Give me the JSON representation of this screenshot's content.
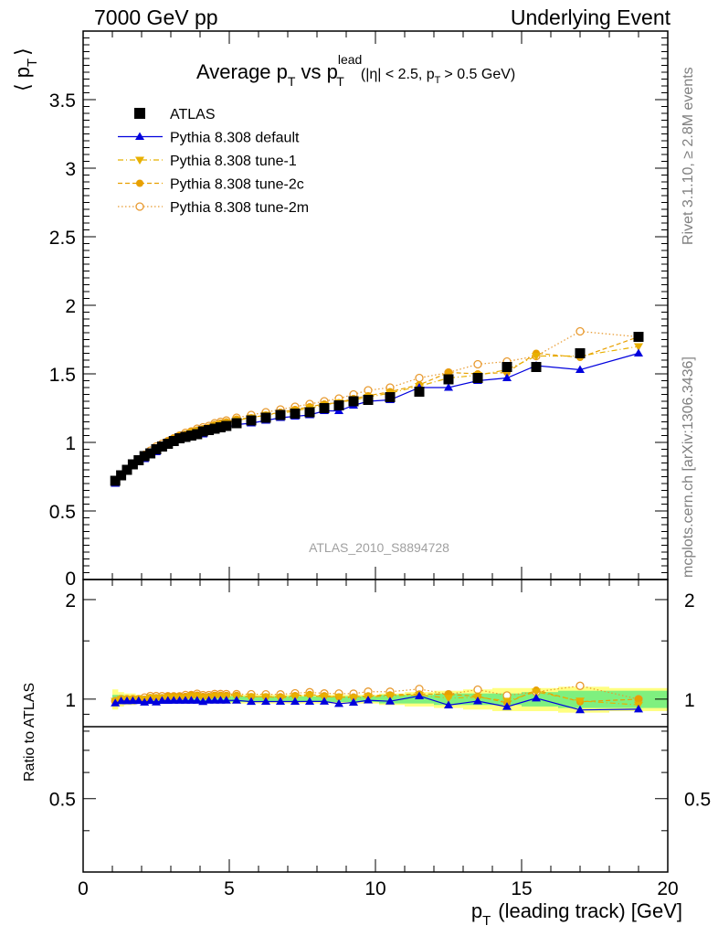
{
  "header": {
    "left": "7000 GeV pp",
    "right": "Underlying Event"
  },
  "side_labels": {
    "rivet": "Rivet 3.1.10, ≥ 2.8M events",
    "mcplots": "mcplots.cern.ch [arXiv:1306.3436]"
  },
  "watermark": "ATLAS_2010_S8894728",
  "colors": {
    "atlas": "#000000",
    "default": "#0000dd",
    "tune1": "#e8b000",
    "tune2c": "#e8a000",
    "tune2m": "#e89a30",
    "band_inner": "#7ff07f",
    "band_outer": "#ffff80"
  },
  "chart_data": [
    {
      "type": "scatter",
      "title_main": "Average p",
      "title_sub": "T",
      "title_vs": "vs p",
      "title_sup": "lead",
      "title_cuts": "(|η| < 2.5, p",
      "title_cuts_end": "> 0.5 GeV)",
      "ylabel": "⟨ p",
      "ylabel_sub": "T",
      "ylabel_end": "⟩",
      "xlim": [
        0,
        20
      ],
      "ylim": [
        0,
        4
      ],
      "yticks": [
        "0.5",
        "1",
        "1.5",
        "2",
        "2.5",
        "3",
        "3.5"
      ],
      "ytick_values": [
        0.5,
        1,
        1.5,
        2,
        2.5,
        3,
        3.5
      ],
      "ytick_zero": "0",
      "legend_placement": "top-left",
      "x": [
        1.1,
        1.3,
        1.5,
        1.7,
        1.9,
        2.1,
        2.3,
        2.5,
        2.7,
        2.9,
        3.1,
        3.3,
        3.5,
        3.7,
        3.9,
        4.1,
        4.3,
        4.5,
        4.7,
        4.9,
        5.25,
        5.75,
        6.25,
        6.75,
        7.25,
        7.75,
        8.25,
        8.75,
        9.25,
        9.75,
        10.5,
        11.5,
        12.5,
        13.5,
        14.5,
        15.5,
        17.0,
        19.0
      ],
      "series": [
        {
          "name": "ATLAS",
          "key": "atlas",
          "marker": "square",
          "values": [
            0.72,
            0.76,
            0.8,
            0.84,
            0.87,
            0.9,
            0.92,
            0.95,
            0.97,
            0.99,
            1.01,
            1.03,
            1.04,
            1.05,
            1.06,
            1.08,
            1.09,
            1.1,
            1.11,
            1.12,
            1.14,
            1.16,
            1.18,
            1.2,
            1.21,
            1.22,
            1.25,
            1.27,
            1.3,
            1.31,
            1.33,
            1.37,
            1.46,
            1.47,
            1.55,
            1.55,
            1.65,
            1.77
          ]
        },
        {
          "name": "Pythia 8.308 default",
          "key": "default",
          "marker": "triangle-up",
          "line": "solid",
          "values": [
            0.7,
            0.75,
            0.79,
            0.83,
            0.86,
            0.88,
            0.91,
            0.93,
            0.96,
            0.98,
            1.0,
            1.02,
            1.03,
            1.04,
            1.05,
            1.06,
            1.08,
            1.09,
            1.1,
            1.11,
            1.13,
            1.14,
            1.16,
            1.18,
            1.19,
            1.2,
            1.23,
            1.23,
            1.27,
            1.3,
            1.31,
            1.4,
            1.4,
            1.45,
            1.47,
            1.56,
            1.53,
            1.65
          ]
        },
        {
          "name": "Pythia 8.308 tune-1",
          "key": "tune1",
          "marker": "triangle-down",
          "line": "dashdot",
          "values": [
            0.71,
            0.76,
            0.8,
            0.84,
            0.87,
            0.9,
            0.93,
            0.96,
            0.98,
            1.0,
            1.02,
            1.04,
            1.05,
            1.07,
            1.08,
            1.09,
            1.1,
            1.12,
            1.13,
            1.14,
            1.16,
            1.18,
            1.2,
            1.21,
            1.23,
            1.25,
            1.27,
            1.29,
            1.31,
            1.33,
            1.36,
            1.41,
            1.47,
            1.49,
            1.53,
            1.63,
            1.63,
            1.7
          ]
        },
        {
          "name": "Pythia 8.308 tune-2c",
          "key": "tune2c",
          "marker": "circle",
          "line": "dashed",
          "values": [
            0.71,
            0.76,
            0.8,
            0.84,
            0.87,
            0.9,
            0.93,
            0.96,
            0.98,
            1.01,
            1.03,
            1.05,
            1.06,
            1.08,
            1.09,
            1.1,
            1.11,
            1.13,
            1.14,
            1.15,
            1.17,
            1.18,
            1.2,
            1.22,
            1.24,
            1.26,
            1.28,
            1.29,
            1.32,
            1.34,
            1.37,
            1.42,
            1.51,
            1.5,
            1.51,
            1.65,
            1.62,
            1.77
          ]
        },
        {
          "name": "Pythia 8.308 tune-2m",
          "key": "tune2m",
          "marker": "circle-open",
          "line": "dotted",
          "values": [
            0.71,
            0.76,
            0.8,
            0.84,
            0.87,
            0.91,
            0.94,
            0.97,
            0.99,
            1.01,
            1.03,
            1.05,
            1.07,
            1.08,
            1.1,
            1.11,
            1.12,
            1.14,
            1.15,
            1.16,
            1.18,
            1.2,
            1.22,
            1.24,
            1.26,
            1.28,
            1.3,
            1.32,
            1.35,
            1.38,
            1.4,
            1.47,
            1.51,
            1.57,
            1.59,
            1.63,
            1.81,
            1.77
          ]
        }
      ]
    },
    {
      "type": "line",
      "ylabel": "Ratio to ATLAS",
      "xlabel": "p",
      "xlabel_sub": "T",
      "xlabel_end": "(leading track) [GeV]",
      "xlim": [
        0,
        20
      ],
      "ylim": [
        0.3,
        2.3
      ],
      "xticks": [
        "0",
        "5",
        "10",
        "15",
        "20"
      ],
      "xtick_values": [
        0,
        5,
        10,
        15,
        20
      ],
      "yticks": [
        "0.5",
        "1",
        "2"
      ],
      "ytick_values": [
        0.5,
        1,
        2
      ],
      "band_inner": [
        0.03,
        0.03,
        0.02,
        0.02,
        0.02,
        0.02,
        0.02,
        0.02,
        0.02,
        0.02,
        0.02,
        0.02,
        0.02,
        0.02,
        0.02,
        0.02,
        0.02,
        0.02,
        0.02,
        0.02,
        0.02,
        0.02,
        0.02,
        0.02,
        0.02,
        0.02,
        0.02,
        0.02,
        0.02,
        0.02,
        0.03,
        0.03,
        0.04,
        0.04,
        0.04,
        0.05,
        0.06,
        0.06
      ],
      "band_outer": [
        0.07,
        0.05,
        0.04,
        0.04,
        0.03,
        0.03,
        0.03,
        0.03,
        0.03,
        0.03,
        0.03,
        0.03,
        0.03,
        0.03,
        0.03,
        0.03,
        0.03,
        0.03,
        0.03,
        0.03,
        0.03,
        0.03,
        0.03,
        0.03,
        0.03,
        0.03,
        0.03,
        0.03,
        0.03,
        0.03,
        0.04,
        0.05,
        0.06,
        0.07,
        0.08,
        0.08,
        0.09,
        0.08
      ]
    }
  ]
}
